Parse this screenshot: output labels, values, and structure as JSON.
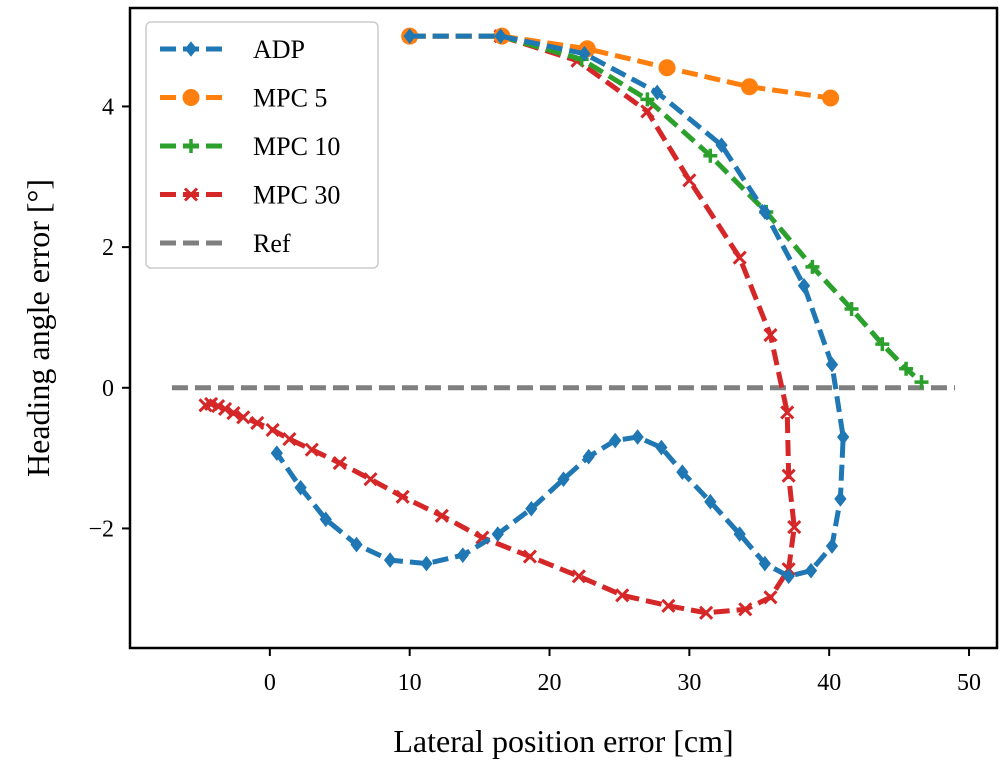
{
  "chart_data": {
    "type": "line",
    "title": "",
    "xlabel": "Lateral position error [cm]",
    "ylabel": "Heading angle error [°]",
    "xlim": [
      -10,
      52
    ],
    "ylim": [
      -3.7,
      5.4
    ],
    "xticks": [
      0,
      10,
      20,
      30,
      40,
      50
    ],
    "yticks": [
      -2,
      0,
      2,
      4
    ],
    "ytick_labels": [
      "−2",
      "0",
      "2",
      "4"
    ],
    "grid": false,
    "legend": "top-left",
    "series": [
      {
        "name": "ADP",
        "color": "#1f77b4",
        "marker": "diamond",
        "linestyle": "dashed",
        "x": [
          10.0,
          16.5,
          22.5,
          27.7,
          32.3,
          35.4,
          38.2,
          40.2,
          41.0,
          40.8,
          40.2,
          38.7,
          37.1,
          35.4,
          33.6,
          31.5,
          29.5,
          28.0,
          26.3,
          24.7,
          22.8,
          21.0,
          18.7,
          16.3,
          13.8,
          11.2,
          8.6,
          6.2,
          4.0,
          2.2,
          0.5
        ],
        "y": [
          5.0,
          5.0,
          4.75,
          4.2,
          3.45,
          2.5,
          1.45,
          0.33,
          -0.7,
          -1.58,
          -2.25,
          -2.6,
          -2.68,
          -2.5,
          -2.08,
          -1.62,
          -1.2,
          -0.85,
          -0.7,
          -0.75,
          -0.98,
          -1.3,
          -1.72,
          -2.08,
          -2.38,
          -2.5,
          -2.45,
          -2.23,
          -1.87,
          -1.42,
          -0.93
        ]
      },
      {
        "name": "MPC 5",
        "color": "#ff7f0e",
        "marker": "circle",
        "linestyle": "dashed",
        "x": [
          10.0,
          16.6,
          22.7,
          28.4,
          34.3,
          40.1
        ],
        "y": [
          5.0,
          5.0,
          4.82,
          4.55,
          4.28,
          4.12
        ]
      },
      {
        "name": "MPC 10",
        "color": "#2ca02c",
        "marker": "plus",
        "linestyle": "dashed",
        "x": [
          10.0,
          16.5,
          22.3,
          27.0,
          31.5,
          35.5,
          38.8,
          41.6,
          43.8,
          45.5,
          46.6
        ],
        "y": [
          5.0,
          5.0,
          4.67,
          4.1,
          3.3,
          2.5,
          1.72,
          1.12,
          0.62,
          0.27,
          0.08
        ]
      },
      {
        "name": "MPC 30",
        "color": "#d62728",
        "marker": "x",
        "linestyle": "dashed",
        "x": [
          10.0,
          16.5,
          22.0,
          27.0,
          30.0,
          33.6,
          35.8,
          37.0,
          37.1,
          37.5,
          37.1,
          35.8,
          34.0,
          31.2,
          28.5,
          25.2,
          22.1,
          18.6,
          15.2,
          12.3,
          9.5,
          7.2,
          5.0,
          3.0,
          1.4,
          0.2,
          -0.9,
          -1.9,
          -2.6,
          -3.2,
          -3.7,
          -4.2,
          -4.6
        ],
        "y": [
          5.0,
          5.0,
          4.65,
          3.93,
          2.95,
          1.85,
          0.75,
          -0.35,
          -1.25,
          -1.98,
          -2.58,
          -2.98,
          -3.15,
          -3.2,
          -3.1,
          -2.95,
          -2.68,
          -2.4,
          -2.13,
          -1.82,
          -1.55,
          -1.3,
          -1.07,
          -0.88,
          -0.73,
          -0.6,
          -0.5,
          -0.42,
          -0.36,
          -0.3,
          -0.26,
          -0.23,
          -0.25
        ]
      },
      {
        "name": "Ref",
        "color": "#7f7f7f",
        "marker": "none",
        "linestyle": "dashed",
        "x": [
          -7.0,
          49.0
        ],
        "y": [
          0,
          0
        ]
      }
    ]
  }
}
